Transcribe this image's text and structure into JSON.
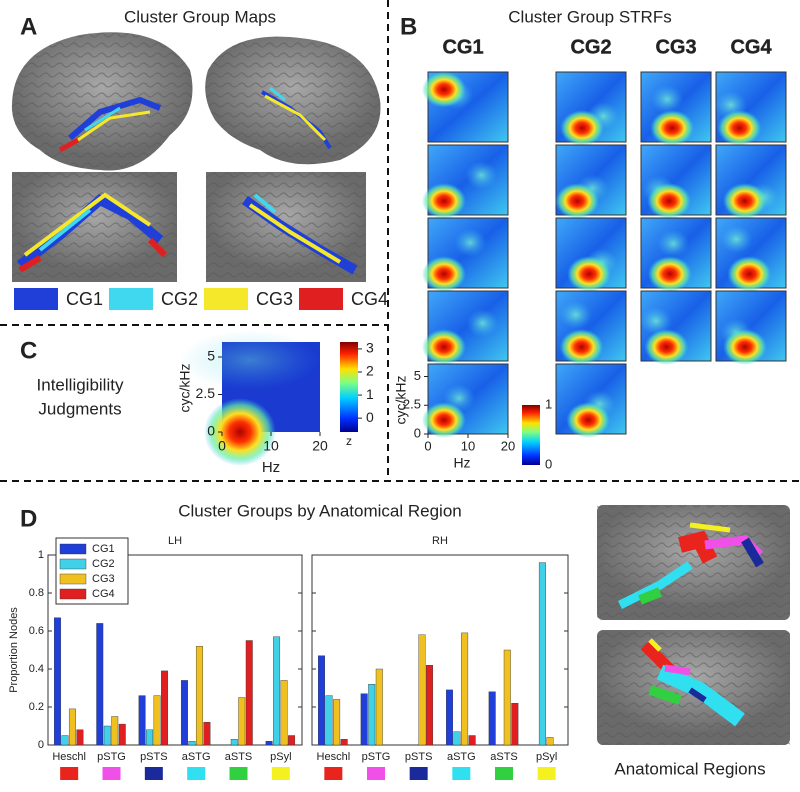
{
  "panels": {
    "a": {
      "label": "A",
      "title": "Cluster Group Maps",
      "legend": [
        {
          "name": "CG1",
          "color": "#1f3fd8"
        },
        {
          "name": "CG2",
          "color": "#40d8ee"
        },
        {
          "name": "CG3",
          "color": "#f5e82a"
        },
        {
          "name": "CG4",
          "color": "#e02020"
        }
      ]
    },
    "b": {
      "label": "B",
      "title": "Cluster Group STRFs",
      "columns": [
        {
          "name": "CG1",
          "color": "#1f3fd8"
        },
        {
          "name": "CG2",
          "color": "#40d8ee"
        },
        {
          "name": "CG3",
          "color": "#f5e82a"
        },
        {
          "name": "CG4",
          "color": "#e02020"
        }
      ],
      "y_label": "cyc/kHz",
      "ylim": [
        0,
        6
      ],
      "yticks": [
        0,
        2.5,
        5
      ],
      "x_label": "Hz",
      "xlim": [
        0,
        20
      ],
      "xticks": [
        0,
        10,
        20
      ],
      "clim": [
        0,
        1
      ],
      "colorbar_ticks": [
        0,
        1
      ]
    },
    "c": {
      "label": "C",
      "title_lines": [
        "Intelligibility",
        "Judgments"
      ],
      "y_label": "cyc/kHz",
      "ylim": [
        0,
        6
      ],
      "yticks": [
        0,
        2.5,
        5
      ],
      "x_label": "Hz",
      "xlim": [
        0,
        20
      ],
      "xticks": [
        0,
        10,
        20
      ],
      "clim": [
        -0.6,
        3.3
      ],
      "colorbar_ticks": [
        0,
        1,
        2,
        3
      ],
      "colorbar_label": "z"
    },
    "d": {
      "label": "D",
      "title": "Cluster Groups by Anatomical Region",
      "caption": "Anatomical Regions"
    }
  },
  "chart_data": [
    {
      "type": "bar",
      "title": "LH",
      "ylabel": "Proportion Nodes",
      "legend": "upper left",
      "ytick_labels": true,
      "categories": [
        "Heschl",
        "pSTG",
        "pSTS",
        "aSTG",
        "aSTS",
        "pSyl"
      ],
      "category_colors": [
        "#e8241c",
        "#f050e8",
        "#1a2a9a",
        "#30e0f0",
        "#30d040",
        "#f5f020"
      ],
      "ylim": [
        0,
        1
      ],
      "yticks": [
        0,
        0.2,
        0.4,
        0.6,
        0.8,
        1
      ],
      "series": [
        {
          "name": "CG1",
          "color": "#1f3fd8",
          "values": [
            0.67,
            0.64,
            0.26,
            0.34,
            0,
            0.02
          ]
        },
        {
          "name": "CG2",
          "color": "#40d0e8",
          "values": [
            0.05,
            0.1,
            0.08,
            0.02,
            0.03,
            0.57
          ]
        },
        {
          "name": "CG3",
          "color": "#f0c020",
          "values": [
            0.19,
            0.15,
            0.26,
            0.52,
            0.25,
            0.34
          ]
        },
        {
          "name": "CG4",
          "color": "#e02020",
          "values": [
            0.08,
            0.11,
            0.39,
            0.12,
            0.55,
            0.05
          ]
        }
      ]
    },
    {
      "type": "bar",
      "title": "RH",
      "ytick_labels": false,
      "categories": [
        "Heschl",
        "pSTG",
        "pSTS",
        "aSTG",
        "aSTS",
        "pSyl"
      ],
      "category_colors": [
        "#e8241c",
        "#f050e8",
        "#1a2a9a",
        "#30e0f0",
        "#30d040",
        "#f5f020"
      ],
      "ylim": [
        0,
        1
      ],
      "yticks": [
        0,
        0.2,
        0.4,
        0.6,
        0.8,
        1
      ],
      "series": [
        {
          "name": "CG1",
          "color": "#1f3fd8",
          "values": [
            0.47,
            0.27,
            0,
            0.29,
            0.28,
            0
          ]
        },
        {
          "name": "CG2",
          "color": "#40d0e8",
          "values": [
            0.26,
            0.32,
            0,
            0.07,
            0,
            0.96
          ]
        },
        {
          "name": "CG3",
          "color": "#f0c020",
          "values": [
            0.24,
            0.4,
            0.58,
            0.59,
            0.5,
            0.04
          ]
        },
        {
          "name": "CG4",
          "color": "#e02020",
          "values": [
            0.03,
            0,
            0.42,
            0.05,
            0.22,
            0
          ]
        }
      ]
    }
  ]
}
